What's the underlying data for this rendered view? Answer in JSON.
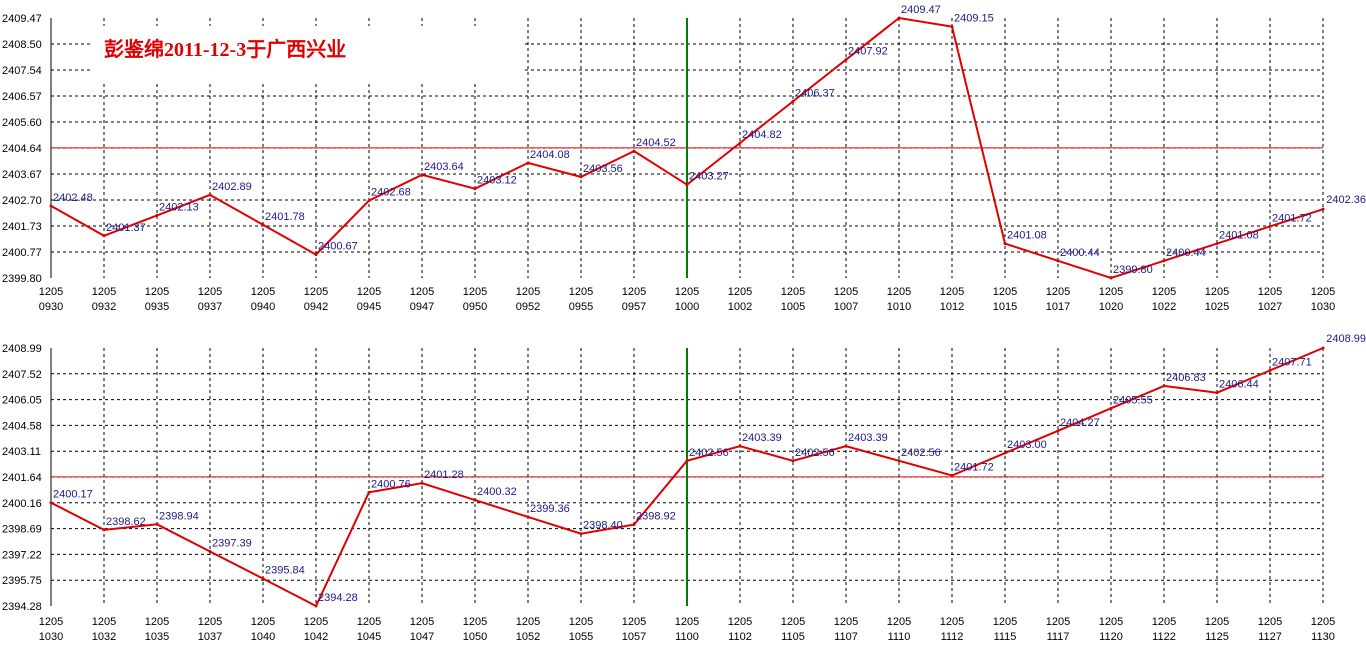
{
  "title": "彭鉴绵2011-12-3于广西兴业",
  "colors": {
    "series": "#e00000",
    "reference_line": "#e00000",
    "divider_line": "#008000",
    "grid": "#000000",
    "label": "#1a1a8c"
  },
  "chart_data": [
    {
      "type": "line",
      "grid": true,
      "ylim": [
        2399.8,
        2409.47
      ],
      "y_ticks": [
        "2409.47",
        "2408.50",
        "2407.54",
        "2406.57",
        "2405.60",
        "2404.64",
        "2403.67",
        "2402.70",
        "2401.73",
        "2400.77",
        "2399.80"
      ],
      "reference_value": 2404.64,
      "divider_after": "1205 1000",
      "x_ticks": [
        [
          "1205",
          "0930"
        ],
        [
          "1205",
          "0932"
        ],
        [
          "1205",
          "0935"
        ],
        [
          "1205",
          "0937"
        ],
        [
          "1205",
          "0940"
        ],
        [
          "1205",
          "0942"
        ],
        [
          "1205",
          "0945"
        ],
        [
          "1205",
          "0947"
        ],
        [
          "1205",
          "0950"
        ],
        [
          "1205",
          "0952"
        ],
        [
          "1205",
          "0955"
        ],
        [
          "1205",
          "0957"
        ],
        [
          "1205",
          "1000"
        ],
        [
          "1205",
          "1002"
        ],
        [
          "1205",
          "1005"
        ],
        [
          "1205",
          "1007"
        ],
        [
          "1205",
          "1010"
        ],
        [
          "1205",
          "1012"
        ],
        [
          "1205",
          "1015"
        ],
        [
          "1205",
          "1017"
        ],
        [
          "1205",
          "1020"
        ],
        [
          "1205",
          "1022"
        ],
        [
          "1205",
          "1025"
        ],
        [
          "1205",
          "1027"
        ],
        [
          "1205",
          "1030"
        ]
      ],
      "values": [
        2402.48,
        2401.37,
        2402.13,
        2402.89,
        2401.78,
        2400.67,
        2402.68,
        2403.64,
        2403.12,
        2404.08,
        2403.56,
        2404.52,
        2403.27,
        2404.82,
        2406.37,
        2407.92,
        2409.47,
        2409.15,
        2401.08,
        2400.44,
        2399.8,
        2400.44,
        2401.08,
        2401.72,
        2402.36
      ],
      "labels": [
        "2402.48",
        "2401.37",
        "2402.13",
        "2402.89",
        "2401.78",
        "2400.67",
        "2402.68",
        "2403.64",
        "2403.12",
        "2404.08",
        "2403.56",
        "2404.52",
        "2403.27",
        "2404.82",
        "2406.37",
        "2407.92",
        "2409.47",
        "2409.15",
        "2401.08",
        "2400.44",
        "2399.80",
        "2400.44",
        "2401.08",
        "2401.72",
        "2402.36"
      ]
    },
    {
      "type": "line",
      "grid": true,
      "ylim": [
        2394.28,
        2408.99
      ],
      "y_ticks": [
        "2408.99",
        "2407.52",
        "2406.05",
        "2404.58",
        "2403.11",
        "2401.64",
        "2400.16",
        "2398.69",
        "2397.22",
        "2395.75",
        "2394.28"
      ],
      "reference_value": 2401.64,
      "divider_after": "1205 1100",
      "x_ticks": [
        [
          "1205",
          "1030"
        ],
        [
          "1205",
          "1032"
        ],
        [
          "1205",
          "1035"
        ],
        [
          "1205",
          "1037"
        ],
        [
          "1205",
          "1040"
        ],
        [
          "1205",
          "1042"
        ],
        [
          "1205",
          "1045"
        ],
        [
          "1205",
          "1047"
        ],
        [
          "1205",
          "1050"
        ],
        [
          "1205",
          "1052"
        ],
        [
          "1205",
          "1055"
        ],
        [
          "1205",
          "1057"
        ],
        [
          "1205",
          "1100"
        ],
        [
          "1205",
          "1102"
        ],
        [
          "1205",
          "1105"
        ],
        [
          "1205",
          "1107"
        ],
        [
          "1205",
          "1110"
        ],
        [
          "1205",
          "1112"
        ],
        [
          "1205",
          "1115"
        ],
        [
          "1205",
          "1117"
        ],
        [
          "1205",
          "1120"
        ],
        [
          "1205",
          "1122"
        ],
        [
          "1205",
          "1125"
        ],
        [
          "1205",
          "1127"
        ],
        [
          "1205",
          "1130"
        ]
      ],
      "values": [
        2400.17,
        2398.62,
        2398.94,
        2397.39,
        2395.84,
        2394.28,
        2400.76,
        2401.28,
        2400.32,
        2399.36,
        2398.4,
        2398.92,
        2402.56,
        2403.39,
        2402.56,
        2403.39,
        2402.56,
        2401.72,
        2403.0,
        2404.27,
        2405.55,
        2406.83,
        2406.44,
        2407.71,
        2408.99
      ],
      "labels": [
        "2400.17",
        "2398.62",
        "2398.94",
        "2397.39",
        "2395.84",
        "2394.28",
        "2400.76",
        "2401.28",
        "2400.32",
        "2399.36",
        "2398.40",
        "2398.92",
        "2402.56",
        "2403.39",
        "2402.56",
        "2403.39",
        "2402.56",
        "2401.72",
        "2403.00",
        "2404.27",
        "2405.55",
        "2406.83",
        "2406.44",
        "2407.71",
        "2408.99"
      ]
    }
  ]
}
